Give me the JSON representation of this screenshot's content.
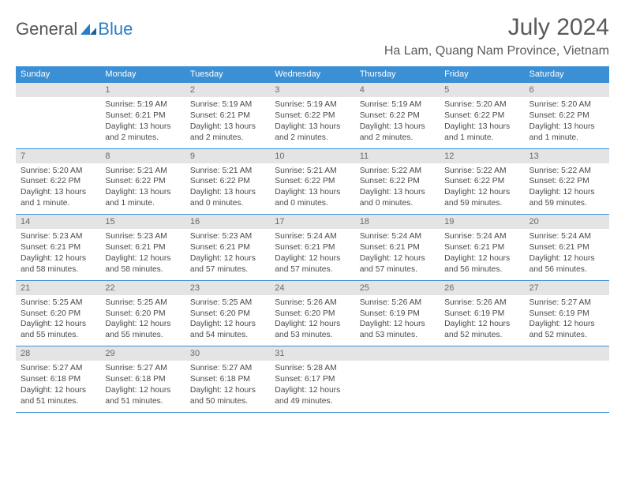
{
  "brand": {
    "part1": "General",
    "part2": "Blue"
  },
  "title": "July 2024",
  "location": "Ha Lam, Quang Nam Province, Vietnam",
  "colors": {
    "header_bar": "#3b8fd4",
    "daynum_bg": "#e4e4e4",
    "text": "#4a4a4a",
    "title_text": "#5a5a5a"
  },
  "weekdays": [
    "Sunday",
    "Monday",
    "Tuesday",
    "Wednesday",
    "Thursday",
    "Friday",
    "Saturday"
  ],
  "weeks": [
    [
      {
        "n": "",
        "sr": "",
        "ss": "",
        "dl": ""
      },
      {
        "n": "1",
        "sr": "5:19 AM",
        "ss": "6:21 PM",
        "dl": "13 hours and 2 minutes."
      },
      {
        "n": "2",
        "sr": "5:19 AM",
        "ss": "6:21 PM",
        "dl": "13 hours and 2 minutes."
      },
      {
        "n": "3",
        "sr": "5:19 AM",
        "ss": "6:22 PM",
        "dl": "13 hours and 2 minutes."
      },
      {
        "n": "4",
        "sr": "5:19 AM",
        "ss": "6:22 PM",
        "dl": "13 hours and 2 minutes."
      },
      {
        "n": "5",
        "sr": "5:20 AM",
        "ss": "6:22 PM",
        "dl": "13 hours and 1 minute."
      },
      {
        "n": "6",
        "sr": "5:20 AM",
        "ss": "6:22 PM",
        "dl": "13 hours and 1 minute."
      }
    ],
    [
      {
        "n": "7",
        "sr": "5:20 AM",
        "ss": "6:22 PM",
        "dl": "13 hours and 1 minute."
      },
      {
        "n": "8",
        "sr": "5:21 AM",
        "ss": "6:22 PM",
        "dl": "13 hours and 1 minute."
      },
      {
        "n": "9",
        "sr": "5:21 AM",
        "ss": "6:22 PM",
        "dl": "13 hours and 0 minutes."
      },
      {
        "n": "10",
        "sr": "5:21 AM",
        "ss": "6:22 PM",
        "dl": "13 hours and 0 minutes."
      },
      {
        "n": "11",
        "sr": "5:22 AM",
        "ss": "6:22 PM",
        "dl": "13 hours and 0 minutes."
      },
      {
        "n": "12",
        "sr": "5:22 AM",
        "ss": "6:22 PM",
        "dl": "12 hours and 59 minutes."
      },
      {
        "n": "13",
        "sr": "5:22 AM",
        "ss": "6:22 PM",
        "dl": "12 hours and 59 minutes."
      }
    ],
    [
      {
        "n": "14",
        "sr": "5:23 AM",
        "ss": "6:21 PM",
        "dl": "12 hours and 58 minutes."
      },
      {
        "n": "15",
        "sr": "5:23 AM",
        "ss": "6:21 PM",
        "dl": "12 hours and 58 minutes."
      },
      {
        "n": "16",
        "sr": "5:23 AM",
        "ss": "6:21 PM",
        "dl": "12 hours and 57 minutes."
      },
      {
        "n": "17",
        "sr": "5:24 AM",
        "ss": "6:21 PM",
        "dl": "12 hours and 57 minutes."
      },
      {
        "n": "18",
        "sr": "5:24 AM",
        "ss": "6:21 PM",
        "dl": "12 hours and 57 minutes."
      },
      {
        "n": "19",
        "sr": "5:24 AM",
        "ss": "6:21 PM",
        "dl": "12 hours and 56 minutes."
      },
      {
        "n": "20",
        "sr": "5:24 AM",
        "ss": "6:21 PM",
        "dl": "12 hours and 56 minutes."
      }
    ],
    [
      {
        "n": "21",
        "sr": "5:25 AM",
        "ss": "6:20 PM",
        "dl": "12 hours and 55 minutes."
      },
      {
        "n": "22",
        "sr": "5:25 AM",
        "ss": "6:20 PM",
        "dl": "12 hours and 55 minutes."
      },
      {
        "n": "23",
        "sr": "5:25 AM",
        "ss": "6:20 PM",
        "dl": "12 hours and 54 minutes."
      },
      {
        "n": "24",
        "sr": "5:26 AM",
        "ss": "6:20 PM",
        "dl": "12 hours and 53 minutes."
      },
      {
        "n": "25",
        "sr": "5:26 AM",
        "ss": "6:19 PM",
        "dl": "12 hours and 53 minutes."
      },
      {
        "n": "26",
        "sr": "5:26 AM",
        "ss": "6:19 PM",
        "dl": "12 hours and 52 minutes."
      },
      {
        "n": "27",
        "sr": "5:27 AM",
        "ss": "6:19 PM",
        "dl": "12 hours and 52 minutes."
      }
    ],
    [
      {
        "n": "28",
        "sr": "5:27 AM",
        "ss": "6:18 PM",
        "dl": "12 hours and 51 minutes."
      },
      {
        "n": "29",
        "sr": "5:27 AM",
        "ss": "6:18 PM",
        "dl": "12 hours and 51 minutes."
      },
      {
        "n": "30",
        "sr": "5:27 AM",
        "ss": "6:18 PM",
        "dl": "12 hours and 50 minutes."
      },
      {
        "n": "31",
        "sr": "5:28 AM",
        "ss": "6:17 PM",
        "dl": "12 hours and 49 minutes."
      },
      {
        "n": "",
        "sr": "",
        "ss": "",
        "dl": ""
      },
      {
        "n": "",
        "sr": "",
        "ss": "",
        "dl": ""
      },
      {
        "n": "",
        "sr": "",
        "ss": "",
        "dl": ""
      }
    ]
  ],
  "labels": {
    "sunrise": "Sunrise: ",
    "sunset": "Sunset: ",
    "daylight": "Daylight: "
  }
}
